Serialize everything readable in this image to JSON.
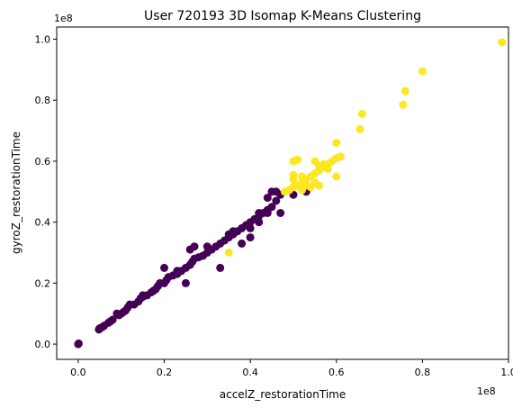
{
  "chart_data": {
    "type": "scatter",
    "title": "User 720193 3D Isomap K-Means Clustering",
    "xlabel": "accelZ_restorationTime",
    "ylabel": "gyroZ_restorationTime",
    "x_offset_label": "1e8",
    "y_offset_label": "1e8",
    "x_scale": 100000000,
    "y_scale": 100000000,
    "xlim": [
      -0.05,
      1.0
    ],
    "ylim": [
      -0.05,
      1.04
    ],
    "x_ticks": [
      0.0,
      0.2,
      0.4,
      0.6,
      0.8,
      1.0
    ],
    "x_tick_labels": [
      "0.0",
      "0.2",
      "0.4",
      "0.6",
      "0.8",
      "1.0"
    ],
    "y_ticks": [
      0.0,
      0.2,
      0.4,
      0.6,
      0.8,
      1.0
    ],
    "y_tick_labels": [
      "0.0",
      "0.2",
      "0.4",
      "0.6",
      "0.8",
      "1.0"
    ],
    "grid": false,
    "legend": "none",
    "series": [
      {
        "color": "#440154",
        "points": [
          [
            0.0,
            0.0
          ],
          [
            0.001,
            0.002
          ],
          [
            0.048,
            0.048
          ],
          [
            0.05,
            0.052
          ],
          [
            0.055,
            0.055
          ],
          [
            0.07,
            0.07
          ],
          [
            0.075,
            0.075
          ],
          [
            0.08,
            0.08
          ],
          [
            0.095,
            0.095
          ],
          [
            0.1,
            0.1
          ],
          [
            0.105,
            0.105
          ],
          [
            0.11,
            0.11
          ],
          [
            0.115,
            0.12
          ],
          [
            0.13,
            0.13
          ],
          [
            0.14,
            0.14
          ],
          [
            0.145,
            0.15
          ],
          [
            0.15,
            0.155
          ],
          [
            0.16,
            0.16
          ],
          [
            0.17,
            0.17
          ],
          [
            0.175,
            0.175
          ],
          [
            0.18,
            0.18
          ],
          [
            0.185,
            0.19
          ],
          [
            0.19,
            0.2
          ],
          [
            0.2,
            0.2
          ],
          [
            0.205,
            0.21
          ],
          [
            0.21,
            0.22
          ],
          [
            0.22,
            0.225
          ],
          [
            0.23,
            0.23
          ],
          [
            0.24,
            0.24
          ],
          [
            0.25,
            0.25
          ],
          [
            0.26,
            0.26
          ],
          [
            0.265,
            0.27
          ],
          [
            0.27,
            0.28
          ],
          [
            0.28,
            0.285
          ],
          [
            0.29,
            0.29
          ],
          [
            0.3,
            0.3
          ],
          [
            0.31,
            0.31
          ],
          [
            0.32,
            0.32
          ],
          [
            0.33,
            0.33
          ],
          [
            0.34,
            0.34
          ],
          [
            0.35,
            0.35
          ],
          [
            0.36,
            0.36
          ],
          [
            0.37,
            0.37
          ],
          [
            0.38,
            0.38
          ],
          [
            0.39,
            0.39
          ],
          [
            0.4,
            0.4
          ],
          [
            0.41,
            0.41
          ],
          [
            0.42,
            0.42
          ],
          [
            0.43,
            0.43
          ],
          [
            0.44,
            0.44
          ],
          [
            0.45,
            0.45
          ],
          [
            0.45,
            0.5
          ],
          [
            0.46,
            0.5
          ],
          [
            0.44,
            0.48
          ],
          [
            0.47,
            0.49
          ],
          [
            0.46,
            0.47
          ],
          [
            0.2,
            0.25
          ],
          [
            0.27,
            0.32
          ],
          [
            0.26,
            0.31
          ],
          [
            0.25,
            0.2
          ],
          [
            0.33,
            0.25
          ],
          [
            0.36,
            0.37
          ],
          [
            0.38,
            0.33
          ],
          [
            0.4,
            0.35
          ],
          [
            0.4,
            0.38
          ],
          [
            0.42,
            0.4
          ],
          [
            0.47,
            0.43
          ],
          [
            0.52,
            0.51
          ],
          [
            0.53,
            0.5
          ],
          [
            0.5,
            0.49
          ],
          [
            0.42,
            0.43
          ],
          [
            0.44,
            0.43
          ],
          [
            0.35,
            0.36
          ],
          [
            0.3,
            0.32
          ],
          [
            0.23,
            0.24
          ],
          [
            0.15,
            0.16
          ],
          [
            0.12,
            0.13
          ],
          [
            0.09,
            0.1
          ],
          [
            0.06,
            0.06
          ]
        ]
      },
      {
        "color": "#fde725",
        "points": [
          [
            0.985,
            0.99
          ],
          [
            0.8,
            0.895
          ],
          [
            0.76,
            0.83
          ],
          [
            0.755,
            0.785
          ],
          [
            0.66,
            0.755
          ],
          [
            0.655,
            0.705
          ],
          [
            0.6,
            0.66
          ],
          [
            0.61,
            0.615
          ],
          [
            0.6,
            0.61
          ],
          [
            0.59,
            0.6
          ],
          [
            0.58,
            0.59
          ],
          [
            0.57,
            0.58
          ],
          [
            0.56,
            0.57
          ],
          [
            0.55,
            0.56
          ],
          [
            0.54,
            0.55
          ],
          [
            0.53,
            0.54
          ],
          [
            0.52,
            0.53
          ],
          [
            0.5,
            0.6
          ],
          [
            0.51,
            0.605
          ],
          [
            0.5,
            0.555
          ],
          [
            0.5,
            0.54
          ],
          [
            0.52,
            0.55
          ],
          [
            0.55,
            0.6
          ],
          [
            0.56,
            0.585
          ],
          [
            0.6,
            0.55
          ],
          [
            0.57,
            0.59
          ],
          [
            0.55,
            0.53
          ],
          [
            0.54,
            0.515
          ],
          [
            0.56,
            0.52
          ],
          [
            0.53,
            0.52
          ],
          [
            0.5,
            0.515
          ],
          [
            0.49,
            0.505
          ],
          [
            0.48,
            0.5
          ],
          [
            0.52,
            0.505
          ],
          [
            0.51,
            0.52
          ],
          [
            0.35,
            0.3
          ],
          [
            0.58,
            0.575
          ]
        ]
      }
    ]
  }
}
